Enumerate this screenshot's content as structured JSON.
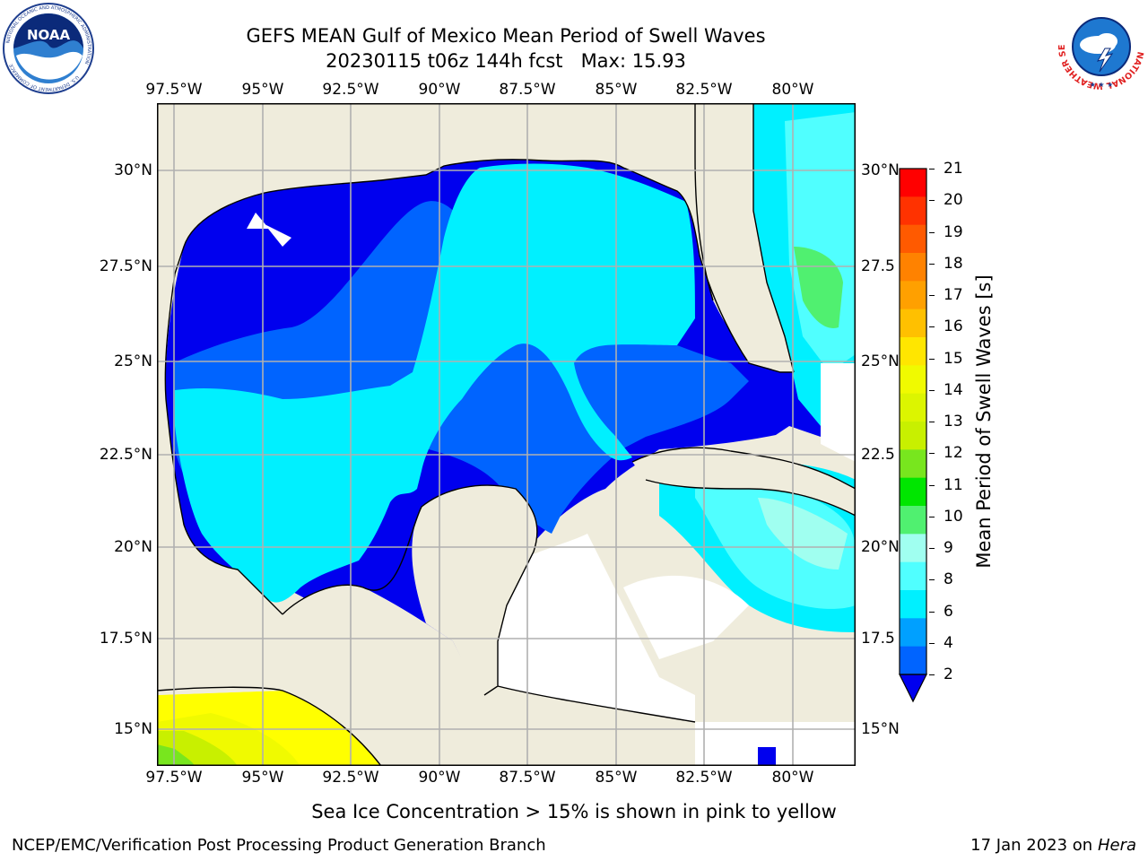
{
  "header": {
    "title_line1": "GEFS MEAN Gulf of Mexico Mean Period of Swell Waves",
    "title_line2": "20230115 t06z 144h fcst   Max: 15.93"
  },
  "logos": {
    "left_name": "NOAA",
    "left_ring_text": "NATIONAL OCEANIC AND ATMOSPHERIC ADMINISTRATION",
    "left_bottom_text": "U.S. DEPARTMENT OF COMMERCE",
    "right_ring_text": "NATIONAL WEATHER SERVICE"
  },
  "map": {
    "lon_ticks": [
      "97.5°W",
      "95°W",
      "92.5°W",
      "90°W",
      "87.5°W",
      "85°W",
      "82.5°W",
      "80°W"
    ],
    "lat_ticks_left": [
      "30°N",
      "27.5°N",
      "25°N",
      "22.5°N",
      "20°N",
      "17.5°N",
      "15°N"
    ],
    "lat_ticks_right": [
      "30°N",
      "27.5",
      "25°N",
      "22.5",
      "20°N",
      "17.5",
      "15°N"
    ],
    "colors": {
      "land": "#efecdc",
      "coast": "#000000",
      "grid": "#b0b0b0",
      "no_data": "#ffffff"
    }
  },
  "colorbar": {
    "label": "Mean Period of Swell Waves [s]",
    "ticks": [
      "21",
      "20",
      "19",
      "18",
      "17",
      "16",
      "15",
      "14",
      "13",
      "12",
      "11",
      "10",
      "9",
      "8",
      "6",
      "4",
      "2"
    ],
    "colors_top_to_bottom": [
      "#ff0000",
      "#ff3200",
      "#ff5a00",
      "#ff8200",
      "#ffa000",
      "#ffc000",
      "#ffe600",
      "#f0fa00",
      "#dcf500",
      "#c8f000",
      "#78e61e",
      "#00e600",
      "#50f070",
      "#a0fff0",
      "#50ffff",
      "#00f0ff",
      "#00a0ff",
      "#0064ff"
    ],
    "under_color": "#0000ee"
  },
  "footer": {
    "note": "Sea Ice Concentration > 15% is shown in pink to yellow",
    "left": "NCEP/EMC/Verification Post Processing Product Generation Branch",
    "right_date": "17 Jan 2023 on ",
    "right_host": "Hera"
  }
}
